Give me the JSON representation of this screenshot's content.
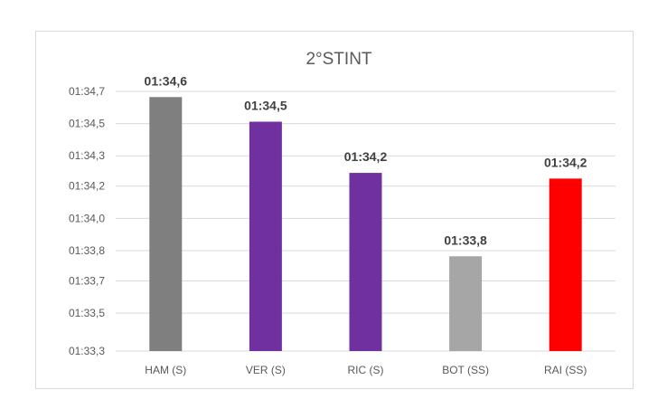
{
  "chart_data": {
    "type": "bar",
    "title": "2°STINT",
    "xlabel": "",
    "ylabel": "",
    "categories": [
      "HAM (S)",
      "VER (S)",
      "RIC (S)",
      "BOT (SS)",
      "RAI (SS)"
    ],
    "values": [
      94.64,
      94.51,
      94.24,
      93.8,
      94.21
    ],
    "data_labels": [
      "01:34,6",
      "01:34,5",
      "01:34,2",
      "01:33,8",
      "01:34,2"
    ],
    "colors": [
      "#7f7f7f",
      "#7030a0",
      "#7030a0",
      "#a6a6a6",
      "#ff0000"
    ],
    "yticks": [
      93.3,
      93.5,
      93.67,
      93.83,
      94.0,
      94.17,
      94.33,
      94.5,
      94.67
    ],
    "ytick_labels": [
      "01:33,3",
      "01:33,5",
      "01:33,7",
      "01:33,8",
      "01:34,0",
      "01:34,2",
      "01:34,3",
      "01:34,5",
      "01:34,7"
    ],
    "ylim": [
      93.3,
      94.67
    ],
    "grid": true,
    "legend": "none"
  }
}
